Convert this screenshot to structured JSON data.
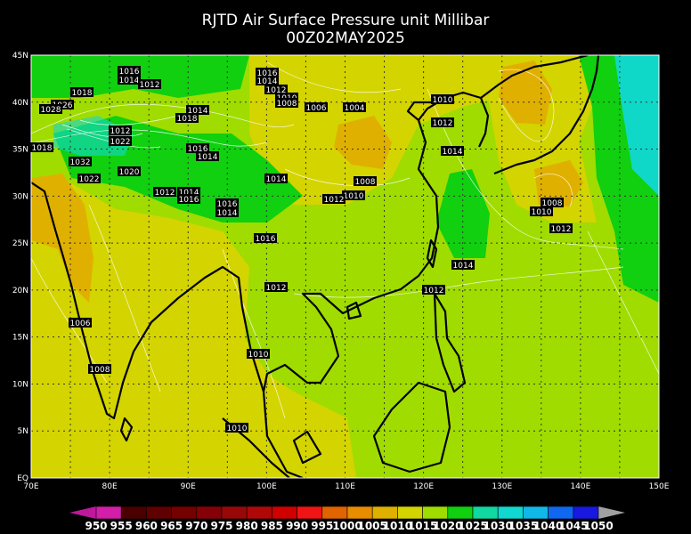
{
  "header": {
    "title": "RJTD Air Surface Pressure unit Millibar",
    "subtitle": "00Z02MAY2025"
  },
  "axes": {
    "lon_labels": [
      "70E",
      "80E",
      "90E",
      "100E",
      "110E",
      "120E",
      "130E",
      "140E",
      "150E"
    ],
    "lat_labels": [
      "45N",
      "40N",
      "35N",
      "30N",
      "25N",
      "20N",
      "15N",
      "10N",
      "5N",
      "EQ"
    ]
  },
  "contour_labels": [
    "1016",
    "1014",
    "1012",
    "1010",
    "1008",
    "1006",
    "1004",
    "1010",
    "1012",
    "1014",
    "1016",
    "1014",
    "1020",
    "1032",
    "1022",
    "1018",
    "1012",
    "1022",
    "1008",
    "1010",
    "1012",
    "1014",
    "1012",
    "1014",
    "1016",
    "1016",
    "1014",
    "1016",
    "1012",
    "1014",
    "1012",
    "1008",
    "1010",
    "1012",
    "1006",
    "1008",
    "1010",
    "1010",
    "1018",
    "1014",
    "1016",
    "1014",
    "1012",
    "1018",
    "1026",
    "1028"
  ],
  "colorbar": {
    "labels": [
      950,
      955,
      960,
      965,
      970,
      975,
      980,
      985,
      990,
      995,
      1000,
      1005,
      1010,
      1015,
      1020,
      1025,
      1030,
      1035,
      1040,
      1045,
      1050
    ],
    "colors": [
      "#d21ea8",
      "#4a0000",
      "#600000",
      "#740000",
      "#860008",
      "#980808",
      "#b00808",
      "#d00000",
      "#f01414",
      "#e06400",
      "#e88c00",
      "#e0b000",
      "#d4d400",
      "#a0dc00",
      "#10d010",
      "#10d8a0",
      "#10d8d0",
      "#10b8e8",
      "#1068f0",
      "#1818e0"
    ],
    "under_color": "#c0189c",
    "over_color": "#a0a0a0"
  }
}
